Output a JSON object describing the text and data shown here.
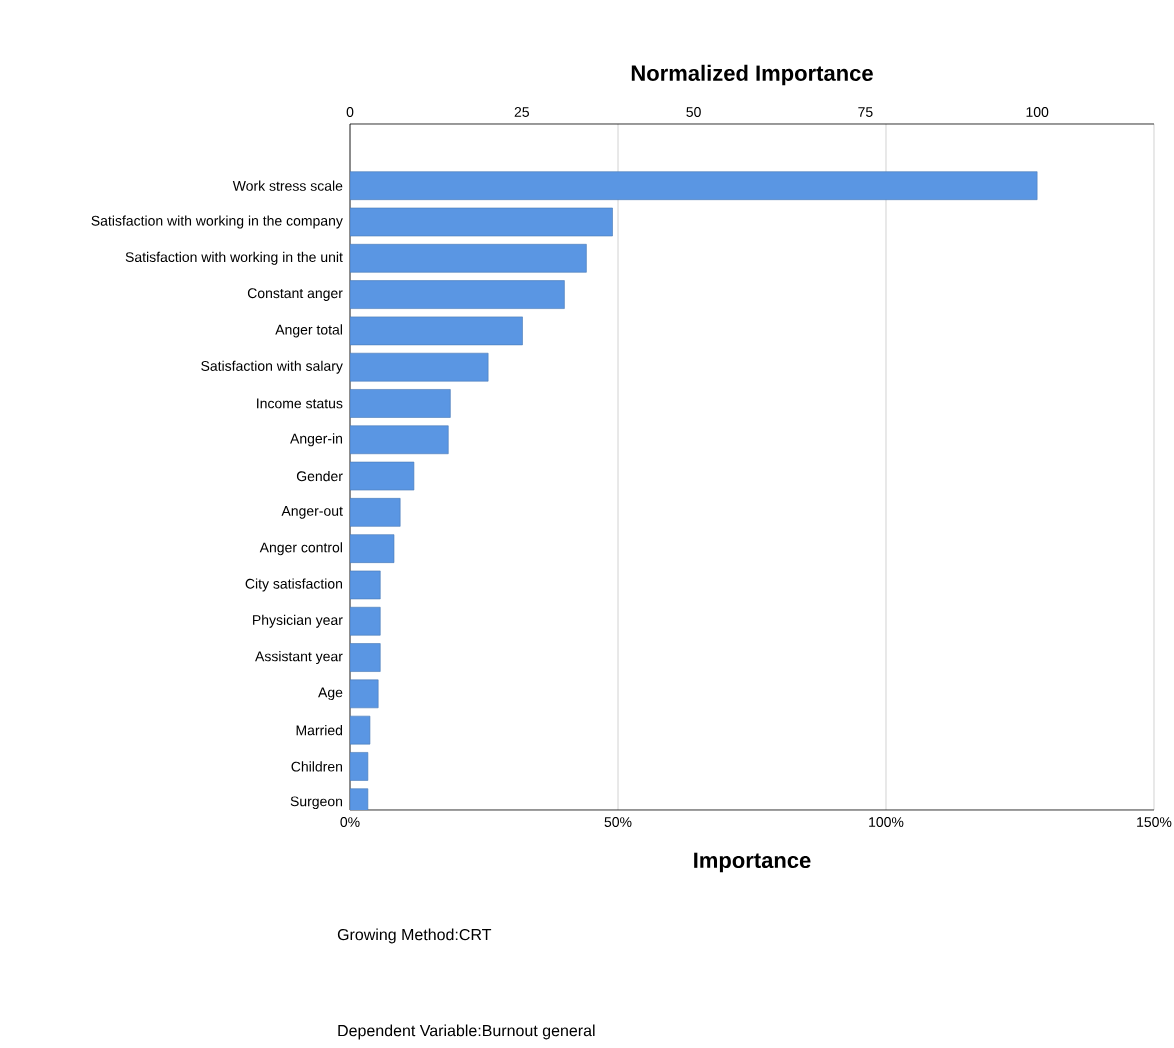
{
  "chart_data": {
    "type": "bar",
    "orientation": "horizontal",
    "xlabel": "Importance",
    "x2label": "Normalized Importance",
    "categories": [
      "Work stress scale",
      "Satisfaction with working in the company",
      "Satisfaction with working in the unit",
      "Constant anger",
      "Anger total",
      "Satisfaction with salary",
      "Income status",
      "Anger-in",
      "Gender",
      "Anger-out",
      "Anger control",
      "City satisfaction",
      "Physician year",
      "Assistant year",
      "Age",
      "Married",
      "Children",
      "Surgeon"
    ],
    "series": [
      {
        "axis": "x2",
        "color": "#5a96e3",
        "values": [
          100,
          38.2,
          34.4,
          31.2,
          25.1,
          20.1,
          14.6,
          14.3,
          9.3,
          7.3,
          6.4,
          4.4,
          4.4,
          4.4,
          4.1,
          2.9,
          2.6,
          2.6
        ]
      }
    ],
    "xlim": [
      0,
      150
    ],
    "xticks": [
      {
        "value": 0,
        "label": "0%"
      },
      {
        "value": 50,
        "label": "50%"
      },
      {
        "value": 100,
        "label": "100%"
      },
      {
        "value": 150,
        "label": "150%"
      }
    ],
    "x2lim": [
      0,
      117
    ],
    "x2ticks": [
      0,
      25,
      50,
      75,
      100
    ],
    "grid": "x",
    "annotations": [
      "Growing Method:CRT",
      "Dependent Variable:Burnout general"
    ]
  }
}
